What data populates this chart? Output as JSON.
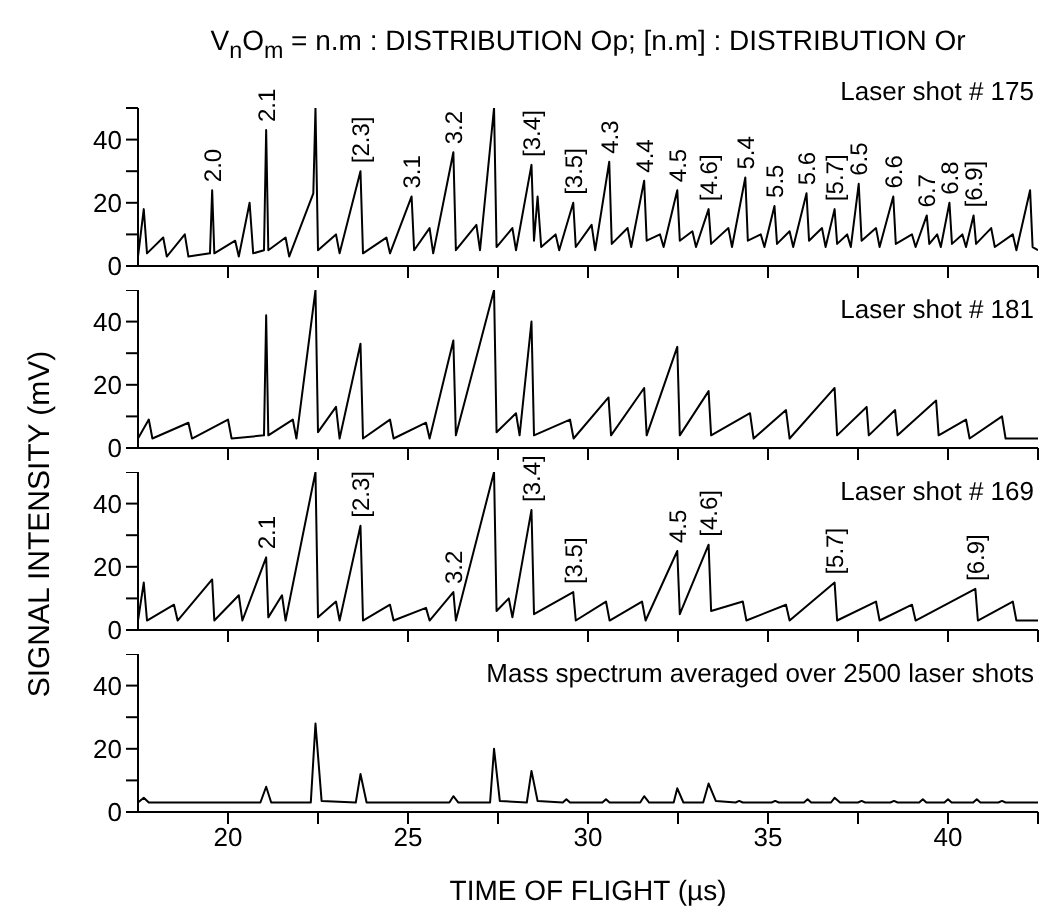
{
  "chart_data": [
    {
      "type": "line",
      "title": "V$_{n}$O$_{m}$ = n.m : DISTRIBUTION Op;  [n.m] : DISTRIBUTION Or",
      "ylabel": "SIGNAL INTENSITY (mV)",
      "tick_labels": "y",
      "xlim": [
        17.5,
        42.5
      ],
      "xticks": [
        20,
        {
          "value": 22.5,
          "label": null
        },
        25,
        {
          "value": 27.5,
          "label": null
        },
        30,
        {
          "value": 32.5,
          "label": null
        },
        35,
        {
          "value": 37.5,
          "label": null
        },
        40,
        {
          "value": 42.5,
          "label": null
        }
      ],
      "ylim": [
        0,
        50
      ],
      "yticks": [
        0,
        {
          "value": 10,
          "label": null
        },
        20,
        {
          "value": 30,
          "label": null
        },
        40,
        {
          "value": 50,
          "label": null
        }
      ],
      "x": [
        17.5,
        17.66,
        17.75,
        18.2,
        18.3,
        18.8,
        18.9,
        19.5,
        19.56,
        19.62,
        20.2,
        20.3,
        20.6,
        20.7,
        21.0,
        21.06,
        21.12,
        21.6,
        21.7,
        22.37,
        22.43,
        22.5,
        23.0,
        23.1,
        23.68,
        23.75,
        24.4,
        24.5,
        25.1,
        25.17,
        25.6,
        25.7,
        26.26,
        26.33,
        26.9,
        27.0,
        27.39,
        27.46,
        27.9,
        28.0,
        28.43,
        28.5,
        28.6,
        28.7,
        29.1,
        29.2,
        29.59,
        29.66,
        30.1,
        30.2,
        30.59,
        30.66,
        31.1,
        31.2,
        31.56,
        31.63,
        32.0,
        32.1,
        32.48,
        32.55,
        32.9,
        33.0,
        33.35,
        33.42,
        33.9,
        34.0,
        34.37,
        34.44,
        34.8,
        34.9,
        35.18,
        35.25,
        35.6,
        35.7,
        36.07,
        36.14,
        36.5,
        36.6,
        36.85,
        36.92,
        37.2,
        37.3,
        37.52,
        37.6,
        38.0,
        38.1,
        38.48,
        38.55,
        39.0,
        39.1,
        39.41,
        39.48,
        39.7,
        39.8,
        40.04,
        40.11,
        40.4,
        40.5,
        40.71,
        40.78,
        41.2,
        41.3,
        41.8,
        41.9,
        42.28,
        42.35,
        42.5
      ],
      "series": [
        {
          "color": "#000000",
          "values": [
            3,
            18,
            4,
            9,
            3,
            10,
            3,
            4,
            24,
            4,
            8,
            3,
            20,
            4,
            5,
            43,
            5,
            9,
            3,
            23,
            50,
            5,
            10,
            4,
            30,
            4,
            9,
            4,
            22,
            5,
            12,
            4,
            36,
            5,
            13,
            5,
            50,
            6,
            12,
            5,
            32,
            8,
            22,
            6,
            10,
            5,
            20,
            6,
            13,
            5,
            33,
            7,
            12,
            6,
            27,
            8,
            10,
            6,
            24,
            8,
            11,
            6,
            18,
            7,
            12,
            6,
            28,
            8,
            10,
            6,
            19,
            7,
            11,
            6,
            23,
            8,
            12,
            6,
            18,
            7,
            10,
            6,
            26,
            8,
            12,
            6,
            22,
            7,
            10,
            6,
            16,
            7,
            10,
            6,
            20,
            7,
            10,
            6,
            16,
            7,
            12,
            6,
            10,
            5,
            24,
            6,
            5
          ]
        }
      ],
      "annotations": [
        "Laser shot # 175",
        {
          "text": "2.0",
          "x": 19.56,
          "y": 24
        },
        {
          "text": "2.1",
          "x": 21.06,
          "y": 43
        },
        {
          "text": "[2.3]",
          "x": 23.68,
          "y": 30
        },
        {
          "text": "3.1",
          "x": 25.1,
          "y": 22
        },
        {
          "text": "3.2",
          "x": 26.26,
          "y": 36
        },
        {
          "text": "[3.4]",
          "x": 28.43,
          "y": 32
        },
        {
          "text": "[3.5]",
          "x": 29.59,
          "y": 20
        },
        {
          "text": "4.3",
          "x": 30.59,
          "y": 33
        },
        {
          "text": "4.4",
          "x": 31.56,
          "y": 27
        },
        {
          "text": "4.5",
          "x": 32.48,
          "y": 24
        },
        {
          "text": "[4.6]",
          "x": 33.35,
          "y": 18
        },
        {
          "text": "5.4",
          "x": 34.37,
          "y": 28
        },
        {
          "text": "5.5",
          "x": 35.18,
          "y": 19
        },
        {
          "text": "5.6",
          "x": 36.07,
          "y": 23
        },
        {
          "text": "[5.7]",
          "x": 36.85,
          "y": 18
        },
        {
          "text": "6.5",
          "x": 37.52,
          "y": 26
        },
        {
          "text": "6.6",
          "x": 38.48,
          "y": 22
        },
        {
          "text": "6.7",
          "x": 39.41,
          "y": 16
        },
        {
          "text": "6.8",
          "x": 40.04,
          "y": 20
        },
        {
          "text": "[6.9]",
          "x": 40.71,
          "y": 16
        }
      ]
    },
    {
      "type": "line",
      "tick_labels": "y",
      "xlim": [
        17.5,
        42.5
      ],
      "xticks": [
        20,
        {
          "value": 22.5,
          "label": null
        },
        25,
        {
          "value": 27.5,
          "label": null
        },
        30,
        {
          "value": 32.5,
          "label": null
        },
        35,
        {
          "value": 37.5,
          "label": null
        },
        40,
        {
          "value": 42.5,
          "label": null
        }
      ],
      "ylim": [
        0,
        50
      ],
      "yticks": [
        0,
        {
          "value": 10,
          "label": null
        },
        20,
        {
          "value": 30,
          "label": null
        },
        40,
        {
          "value": 50,
          "label": null
        }
      ],
      "x": [
        17.5,
        17.8,
        17.9,
        18.9,
        19.0,
        20.0,
        20.1,
        21.0,
        21.06,
        21.12,
        21.8,
        21.9,
        22.43,
        22.5,
        23.0,
        23.1,
        23.68,
        23.75,
        24.5,
        24.6,
        25.5,
        25.6,
        26.26,
        26.33,
        27.39,
        27.46,
        28.0,
        28.1,
        28.43,
        28.5,
        29.5,
        29.6,
        30.57,
        30.64,
        31.56,
        31.63,
        32.48,
        32.55,
        33.35,
        33.42,
        34.5,
        34.6,
        35.5,
        35.6,
        36.85,
        36.92,
        37.74,
        37.8,
        38.53,
        38.6,
        39.67,
        39.74,
        40.5,
        40.6,
        41.5,
        41.6,
        42.5
      ],
      "series": [
        {
          "color": "#000000",
          "values": [
            3,
            9,
            3,
            8,
            3,
            9,
            3,
            4,
            42,
            4,
            9,
            3,
            50,
            5,
            13,
            3,
            33,
            3,
            9,
            3,
            8,
            3,
            34,
            4,
            50,
            5,
            11,
            4,
            40,
            4,
            9,
            3,
            16,
            4,
            19,
            4,
            32,
            4,
            18,
            4,
            11,
            3,
            12,
            3,
            19,
            4,
            13,
            4,
            12,
            4,
            15,
            4,
            9,
            3,
            10,
            3,
            3
          ]
        }
      ],
      "annotations": [
        "Laser shot # 181"
      ]
    },
    {
      "type": "line",
      "tick_labels": "y",
      "xlim": [
        17.5,
        42.5
      ],
      "xticks": [
        20,
        {
          "value": 22.5,
          "label": null
        },
        25,
        {
          "value": 27.5,
          "label": null
        },
        30,
        {
          "value": 32.5,
          "label": null
        },
        35,
        {
          "value": 37.5,
          "label": null
        },
        40,
        {
          "value": 42.5,
          "label": null
        }
      ],
      "ylim": [
        0,
        50
      ],
      "yticks": [
        0,
        {
          "value": 10,
          "label": null
        },
        20,
        {
          "value": 30,
          "label": null
        },
        40,
        {
          "value": 50,
          "label": null
        }
      ],
      "x": [
        17.5,
        17.66,
        17.75,
        18.5,
        18.6,
        19.56,
        19.62,
        20.3,
        20.4,
        21.06,
        21.12,
        21.5,
        21.6,
        22.43,
        22.5,
        23.0,
        23.1,
        23.68,
        23.75,
        24.5,
        24.6,
        25.5,
        25.6,
        26.26,
        26.33,
        27.39,
        27.46,
        27.8,
        27.9,
        28.43,
        28.5,
        29.59,
        29.66,
        30.5,
        30.6,
        31.5,
        31.6,
        32.48,
        32.55,
        33.35,
        33.42,
        34.3,
        34.4,
        35.5,
        35.6,
        36.85,
        36.92,
        38.0,
        38.1,
        39.0,
        39.1,
        40.76,
        40.83,
        41.8,
        41.9,
        42.5
      ],
      "series": [
        {
          "color": "#000000",
          "values": [
            3,
            15,
            3,
            8,
            3,
            16,
            3,
            11,
            3,
            23,
            4,
            11,
            3,
            50,
            4,
            9,
            3,
            33,
            3,
            8,
            3,
            7,
            3,
            12,
            3,
            50,
            6,
            10,
            4,
            38,
            5,
            12,
            3,
            9,
            3,
            9,
            3,
            25,
            5,
            27,
            6,
            9,
            3,
            8,
            3,
            15,
            3,
            9,
            3,
            8,
            3,
            13,
            3,
            9,
            3,
            3
          ]
        }
      ],
      "annotations": [
        "Laser shot # 169",
        {
          "text": "2.1",
          "x": 21.06,
          "y": 23
        },
        {
          "text": "[2.3]",
          "x": 23.68,
          "y": 33
        },
        {
          "text": "3.2",
          "x": 26.26,
          "y": 12
        },
        {
          "text": "[3.4]",
          "x": 28.43,
          "y": 38
        },
        {
          "text": "[3.5]",
          "x": 29.59,
          "y": 12
        },
        {
          "text": "4.5",
          "x": 32.48,
          "y": 25
        },
        {
          "text": "[4.6]",
          "x": 33.35,
          "y": 27
        },
        {
          "text": "[5.7]",
          "x": 36.85,
          "y": 15
        },
        {
          "text": "[6.9]",
          "x": 40.76,
          "y": 13
        }
      ]
    },
    {
      "type": "line",
      "xlabel": "TIME OF FLIGHT (µs)",
      "xlim": [
        17.5,
        42.5
      ],
      "xticks": [
        20,
        {
          "value": 22.5,
          "label": null
        },
        25,
        {
          "value": 27.5,
          "label": null
        },
        30,
        {
          "value": 32.5,
          "label": null
        },
        35,
        {
          "value": 37.5,
          "label": null
        },
        40,
        {
          "value": 42.5,
          "label": null
        }
      ],
      "ylim": [
        0,
        50
      ],
      "yticks": [
        0,
        {
          "value": 10,
          "label": null
        },
        20,
        {
          "value": 30,
          "label": null
        },
        40,
        {
          "value": 50,
          "label": null
        }
      ],
      "x": [
        17.5,
        17.66,
        17.8,
        20.9,
        21.06,
        21.2,
        22.3,
        22.43,
        22.6,
        23.55,
        23.68,
        23.85,
        26.15,
        26.26,
        26.4,
        27.28,
        27.39,
        27.55,
        28.3,
        28.43,
        28.6,
        29.3,
        29.4,
        29.5,
        30.4,
        30.5,
        30.6,
        31.45,
        31.56,
        31.7,
        32.38,
        32.48,
        32.65,
        33.2,
        33.35,
        33.55,
        34.1,
        34.2,
        34.3,
        35.1,
        35.2,
        35.3,
        36.0,
        36.1,
        36.2,
        36.75,
        36.85,
        37.0,
        37.5,
        37.6,
        37.7,
        38.4,
        38.5,
        38.6,
        39.2,
        39.3,
        39.4,
        39.9,
        40.0,
        40.1,
        40.7,
        40.8,
        40.9,
        41.4,
        41.5,
        41.6,
        42.5
      ],
      "series": [
        {
          "color": "#000000",
          "values": [
            3,
            4.5,
            3,
            3,
            8,
            3,
            3,
            28,
            3.5,
            3,
            12,
            3,
            3,
            5,
            3,
            3,
            20,
            3.5,
            3,
            13,
            3.5,
            3,
            4,
            3,
            3,
            4,
            3,
            3,
            5,
            3,
            3,
            7.5,
            3,
            3,
            9,
            3.5,
            3,
            3.5,
            3,
            3,
            3.5,
            3,
            3,
            4,
            3,
            3,
            4.5,
            3,
            3,
            3.5,
            3,
            3,
            3.5,
            3,
            3,
            4,
            3,
            3,
            4,
            3,
            3,
            4,
            3,
            3,
            3.5,
            3,
            3
          ]
        }
      ],
      "annotations": [
        "Mass spectrum averaged over 2500 laser shots"
      ]
    }
  ]
}
